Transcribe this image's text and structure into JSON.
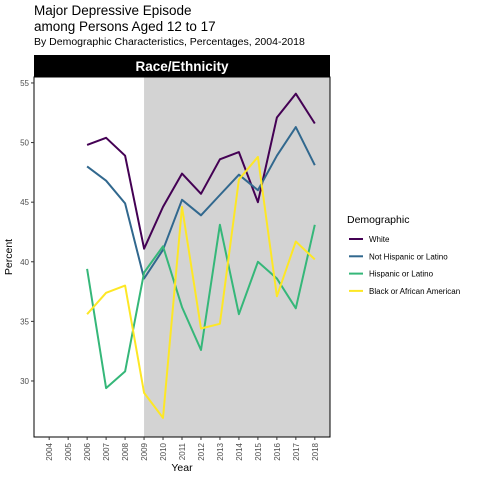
{
  "title_lines": [
    "Major Depressive Episode",
    "among Persons Aged 12 to 17"
  ],
  "subtitle": "By Demographic Characteristics, Percentages, 2004-2018",
  "chart_data": {
    "type": "line",
    "facet_label": "Race/Ethnicity",
    "xlabel": "Year",
    "ylabel": "Percent",
    "x_ticks": [
      "2004",
      "2005",
      "2006",
      "2007",
      "2008",
      "2009",
      "2010",
      "2011",
      "2012",
      "2013",
      "2014",
      "2015",
      "2016",
      "2017",
      "2018"
    ],
    "y_ticks": [
      30,
      35,
      40,
      45,
      50,
      55
    ],
    "xlim": [
      2003.2,
      2018.8
    ],
    "ylim": [
      25.3,
      55.5
    ],
    "shaded_region": {
      "from": 2009,
      "to": 2018.8,
      "color": "#d3d3d3"
    },
    "grid": false,
    "legend_position": "right",
    "legend_title": "Demographic",
    "series": [
      {
        "name": "White",
        "color": "#440154",
        "x": [
          2006,
          2007,
          2008,
          2009,
          2010,
          2011,
          2012,
          2013,
          2014,
          2015,
          2016,
          2017,
          2018
        ],
        "y": [
          49.8,
          50.4,
          48.9,
          41.1,
          44.6,
          47.4,
          45.7,
          48.6,
          49.2,
          45.0,
          52.1,
          54.1,
          51.6
        ]
      },
      {
        "name": "Not Hispanic or Latino",
        "color": "#31688e",
        "x": [
          2006,
          2007,
          2008,
          2009,
          2010,
          2011,
          2012,
          2013,
          2014,
          2015,
          2016,
          2017,
          2018
        ],
        "y": [
          48.0,
          46.8,
          44.9,
          38.6,
          41.0,
          45.2,
          43.9,
          45.6,
          47.3,
          46.0,
          48.9,
          51.3,
          48.1
        ]
      },
      {
        "name": "Hispanic or Latino",
        "color": "#35b779",
        "x": [
          2006,
          2007,
          2008,
          2009,
          2010,
          2011,
          2012,
          2013,
          2014,
          2015,
          2016,
          2017,
          2018
        ],
        "y": [
          39.4,
          29.4,
          30.8,
          39.1,
          41.3,
          36.2,
          32.6,
          43.1,
          35.6,
          40.0,
          38.6,
          36.1,
          43.1
        ]
      },
      {
        "name": "Black or African American",
        "color": "#fde725",
        "x": [
          2006,
          2007,
          2008,
          2009,
          2010,
          2011,
          2012,
          2013,
          2014,
          2015,
          2016,
          2017,
          2018
        ],
        "y": [
          35.6,
          37.4,
          38.0,
          29.0,
          26.9,
          44.6,
          34.4,
          34.8,
          46.9,
          48.8,
          37.1,
          41.7,
          40.2
        ]
      }
    ]
  }
}
